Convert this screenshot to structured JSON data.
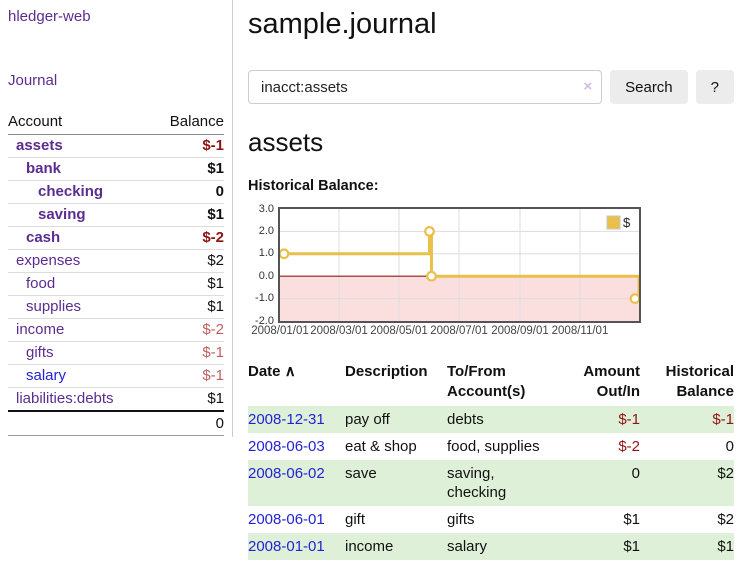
{
  "app": {
    "brand": "hledger-web"
  },
  "colors": {
    "link_purple": "#5b2d90",
    "link_blue": "#2323d6",
    "negative_strong": "#8f1313",
    "negative_muted": "#c05e5e",
    "row_green": "#dff0d8",
    "chart_gold": "#e9c04a",
    "chart_negative_fill": "#fbdede",
    "chart_zero_line": "#8b1a1a"
  },
  "sidebar": {
    "nav_journal": "Journal",
    "accounts_table": {
      "headers": {
        "account": "Account",
        "balance": "Balance"
      },
      "rows": [
        {
          "name": "assets",
          "balance": "$-1",
          "depth": 0,
          "bold": true,
          "value_style": "neg-strong",
          "link_color": "purple"
        },
        {
          "name": "bank",
          "balance": "$1",
          "depth": 1,
          "bold": true,
          "value_style": "",
          "link_color": "purple"
        },
        {
          "name": "checking",
          "balance": "0",
          "depth": 2,
          "bold": true,
          "value_style": "",
          "link_color": "purple"
        },
        {
          "name": "saving",
          "balance": "$1",
          "depth": 2,
          "bold": true,
          "value_style": "",
          "link_color": "purple"
        },
        {
          "name": "cash",
          "balance": "$-2",
          "depth": 1,
          "bold": true,
          "value_style": "neg-strong",
          "link_color": "purple"
        },
        {
          "name": "expenses",
          "balance": "$2",
          "depth": 0,
          "bold": false,
          "value_style": "",
          "link_color": "purple"
        },
        {
          "name": "food",
          "balance": "$1",
          "depth": 1,
          "bold": false,
          "value_style": "",
          "link_color": "purple"
        },
        {
          "name": "supplies",
          "balance": "$1",
          "depth": 1,
          "bold": false,
          "value_style": "",
          "link_color": "purple"
        },
        {
          "name": "income",
          "balance": "$-2",
          "depth": 0,
          "bold": false,
          "value_style": "neg-muted",
          "link_color": "purple"
        },
        {
          "name": "gifts",
          "balance": "$-1",
          "depth": 1,
          "bold": false,
          "value_style": "neg-muted",
          "link_color": "purple"
        },
        {
          "name": "salary",
          "balance": "$-1",
          "depth": 1,
          "bold": false,
          "value_style": "neg-muted",
          "link_color": "blue"
        },
        {
          "name": "liabilities:debts",
          "balance": "$1",
          "depth": 0,
          "bold": false,
          "value_style": "",
          "link_color": "purple"
        }
      ],
      "total": "0"
    }
  },
  "header": {
    "title": "sample.journal"
  },
  "search": {
    "value": "inacct:assets",
    "clear_icon": "×",
    "button": "Search",
    "help_button": "?"
  },
  "main": {
    "account_heading": "assets",
    "chart_label": "Historical Balance:"
  },
  "chart_data": {
    "type": "line",
    "step": true,
    "title": "Historical Balance:",
    "x_domain": [
      "2008-01-01",
      "2008-12-31"
    ],
    "ylim": [
      -2,
      3
    ],
    "yticks": [
      3,
      2,
      1,
      0,
      -1,
      -2
    ],
    "xticks": [
      {
        "label": "2008/01/01",
        "date": "2008-01-01"
      },
      {
        "label": "2008/03/01",
        "date": "2008-03-01"
      },
      {
        "label": "2008/05/01",
        "date": "2008-05-01"
      },
      {
        "label": "2008/07/01",
        "date": "2008-07-01"
      },
      {
        "label": "2008/09/01",
        "date": "2008-09-01"
      },
      {
        "label": "2008/11/01",
        "date": "2008-11-01"
      }
    ],
    "grid": true,
    "legend_position": "top-right",
    "series": [
      {
        "name": "$",
        "color": "#e9c04a",
        "points": [
          [
            "2008-01-01",
            1
          ],
          [
            "2008-06-01",
            2
          ],
          [
            "2008-06-03",
            0
          ],
          [
            "2008-12-31",
            -1
          ]
        ]
      }
    ],
    "negative_fill": "#fbdede",
    "zero_line_color": "#8b1a1a"
  },
  "transactions": {
    "sort_icon": "∧",
    "headers": {
      "date": "Date",
      "description": "Description",
      "accounts": "To/From Account(s)",
      "amount": "Amount Out/In",
      "balance": "Historical Balance"
    },
    "rows": [
      {
        "date": "2008-12-31",
        "description": "pay off",
        "accounts": "debts",
        "amount": "$-1",
        "amount_style": "neg-strong",
        "balance": "$-1",
        "balance_style": "neg-strong"
      },
      {
        "date": "2008-06-03",
        "description": "eat & shop",
        "accounts": "food, supplies",
        "amount": "$-2",
        "amount_style": "neg-strong",
        "balance": "0",
        "balance_style": ""
      },
      {
        "date": "2008-06-02",
        "description": "save",
        "accounts": "saving, checking",
        "amount": "0",
        "amount_style": "",
        "balance": "$2",
        "balance_style": ""
      },
      {
        "date": "2008-06-01",
        "description": "gift",
        "accounts": "gifts",
        "amount": "$1",
        "amount_style": "",
        "balance": "$2",
        "balance_style": ""
      },
      {
        "date": "2008-01-01",
        "description": "income",
        "accounts": "salary",
        "amount": "$1",
        "amount_style": "",
        "balance": "$1",
        "balance_style": ""
      }
    ]
  }
}
